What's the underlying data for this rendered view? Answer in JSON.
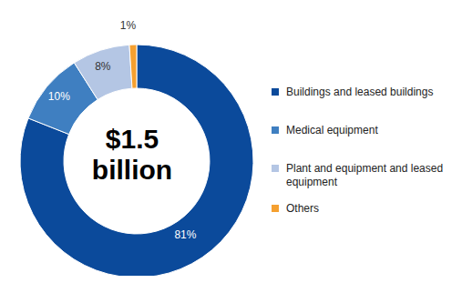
{
  "chart_data": {
    "type": "pie",
    "center_label": "$1.5 billion",
    "categories": [
      "Buildings and leased buildings",
      "Medical equipment",
      "Plant and equipment and leased equipment",
      "Others"
    ],
    "values": [
      81,
      10,
      8,
      1
    ],
    "value_labels": [
      "81%",
      "10%",
      "8%",
      "1%"
    ],
    "colors": [
      "#0b4a9b",
      "#3f7fc1",
      "#b4c6e4",
      "#f5a030"
    ],
    "data_labels": true,
    "legend": "right"
  }
}
